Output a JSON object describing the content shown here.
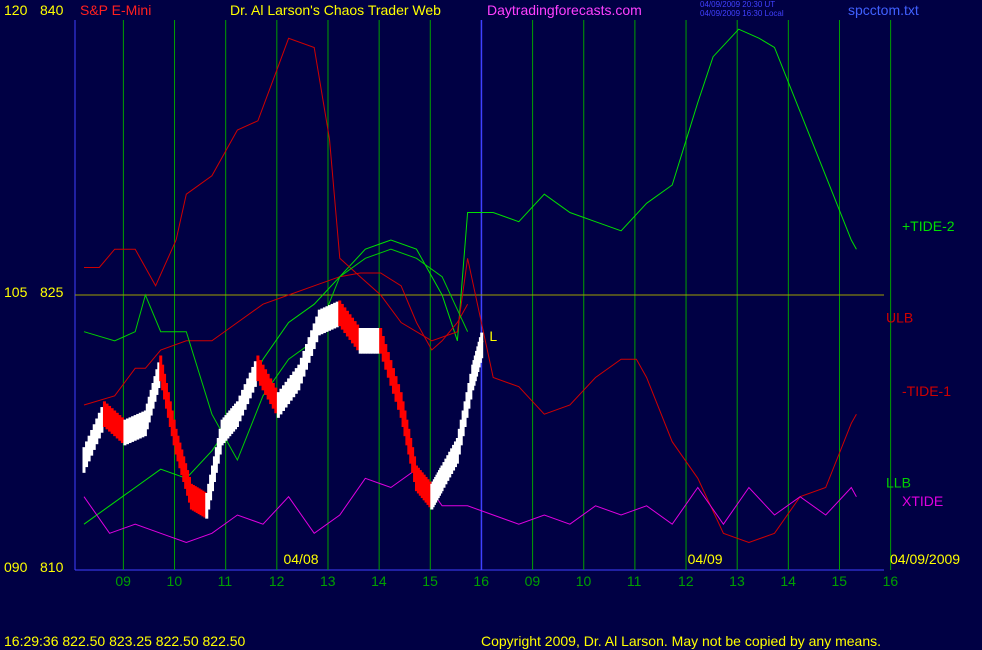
{
  "header": {
    "y_left_top_a": "120",
    "y_left_top_b": "840",
    "symbol": "S&P E-Mini",
    "title": "Dr. Al Larson's Chaos Trader Web",
    "site": "Daytradingforecasts.com",
    "utc_stamp": "04/09/2009 20:30 UT",
    "local_stamp": "04/09/2009 16:30 Local",
    "file": "spcctom.txt"
  },
  "footer": {
    "quote": "16:29:36  822.50  823.25  822.50  822.50",
    "copyright": "Copyright 2009, Dr. Al Larson. May not be copied by any means."
  },
  "labels": {
    "tide2": "+TIDE-2",
    "ulb": "ULB",
    "tide1": "-TIDE-1",
    "llb": "LLB",
    "xtide": "XTIDE",
    "date1": "04/08",
    "date2": "04/09",
    "date_end": "04/09/2009",
    "marker": "L"
  },
  "colors": {
    "background": "#000044",
    "grid": "#00a000",
    "hline": "#a0a000",
    "now_line": "#4040ff",
    "ulb": "#d00000",
    "tide2": "#00e000",
    "llb": "#00d000",
    "xtide": "#e000e0",
    "avg": "#2040ff",
    "yellow": "#ffff00",
    "price_up": "#ffffff",
    "price_down": "#ff0000"
  },
  "chart_data": {
    "type": "line",
    "title": "S&P E-Mini",
    "ylabel_left_osc": [
      "090",
      "105",
      "120"
    ],
    "ylabel_left_price": [
      "810",
      "825",
      "840"
    ],
    "ylim": [
      810,
      840
    ],
    "x_ticks": [
      "09",
      "10",
      "11",
      "12",
      "13",
      "14",
      "15",
      "16",
      "09",
      "10",
      "11",
      "12",
      "13",
      "14",
      "15",
      "16"
    ],
    "x_day_labels": [
      "04/08",
      "04/09"
    ],
    "last_date": "04/09/2009",
    "series": [
      {
        "name": "+TIDE-2",
        "x": [
          0,
          0.5,
          1,
          1.5,
          2,
          2.5,
          3,
          3.5,
          4,
          4.5,
          5,
          5.5,
          6,
          6.5,
          7,
          7.3,
          7.5,
          8,
          8.5,
          9,
          9.5,
          10,
          10.5,
          11,
          11.5,
          12,
          12.3,
          12.8,
          13.2,
          13.5,
          14,
          14.5,
          15,
          15.1
        ],
        "y": [
          812.5,
          813.5,
          814.5,
          815.5,
          815,
          816.5,
          818.5,
          821.5,
          823.5,
          824.5,
          826,
          827.5,
          828,
          827.5,
          825,
          822.5,
          829.5,
          829.5,
          829,
          830.5,
          829.5,
          829,
          828.5,
          830,
          831,
          835.5,
          838,
          839.5,
          839,
          838.5,
          835,
          831.5,
          828,
          827.5
        ]
      },
      {
        "name": "ULB",
        "x": [
          0,
          0.3,
          0.6,
          1,
          1.4,
          1.8,
          2,
          2.5,
          3,
          3.4,
          3.8,
          4,
          4.5,
          4.8,
          5,
          5.4,
          5.8,
          6.2,
          6.8,
          7.3,
          7.5,
          8,
          8.5,
          9,
          9.5,
          10,
          10.5,
          10.8,
          11,
          11.5,
          12,
          12.5,
          13,
          13.5,
          14,
          14.5,
          15,
          15.1
        ],
        "y": [
          826.5,
          826.5,
          827.5,
          827.5,
          825.5,
          828,
          830.5,
          831.5,
          834,
          834.5,
          837.5,
          839,
          838.5,
          833.5,
          827,
          826,
          825,
          823.5,
          822.5,
          823,
          827,
          820.5,
          820,
          818.5,
          819,
          820.5,
          821.5,
          821.5,
          820.5,
          817,
          815,
          812,
          811.5,
          812,
          814,
          814.5,
          818,
          818.5
        ]
      },
      {
        "name": "-TIDE-1",
        "x": [
          0,
          0.6,
          1,
          1.2,
          1.5,
          2,
          2.5,
          3,
          3.5,
          4,
          4.5,
          5,
          5.4,
          5.8,
          6.2,
          6.5,
          6.8,
          7,
          7.3,
          7.5
        ],
        "y": [
          819,
          819.5,
          821,
          821,
          822,
          822.5,
          822.5,
          823.5,
          824.5,
          825,
          825.5,
          826,
          826.2,
          826.2,
          825.5,
          823.5,
          822,
          822.5,
          823.5,
          824.5
        ]
      },
      {
        "name": "LLB",
        "x": [
          0,
          0.6,
          1,
          1.2,
          1.5,
          2,
          2.5,
          3,
          3.5,
          4,
          4.5,
          5,
          5.5,
          6,
          6.5,
          7,
          7.5
        ],
        "y": [
          823,
          822.5,
          823,
          825,
          823,
          823,
          818.5,
          816,
          819.5,
          821.5,
          822.5,
          826,
          827,
          827.5,
          827,
          826,
          823
        ]
      },
      {
        "name": "XTIDE",
        "x": [
          0,
          0.5,
          1,
          1.5,
          2,
          2.5,
          3,
          3.5,
          4,
          4.5,
          5,
          5.5,
          6,
          6.5,
          7,
          7.5,
          8,
          8.5,
          9,
          9.5,
          10,
          10.5,
          11,
          11.5,
          12,
          12.5,
          13,
          13.5,
          14,
          14.5,
          15,
          15.1
        ],
        "y": [
          814,
          812,
          812.5,
          812,
          811.5,
          812,
          813,
          812.5,
          814,
          812,
          813,
          815,
          814.5,
          815.5,
          813.5,
          813.5,
          813,
          812.5,
          813,
          812.5,
          813.5,
          813,
          813.5,
          812.5,
          814.5,
          812.5,
          814.5,
          813,
          814,
          813,
          814.5,
          814
        ]
      },
      {
        "name": "price",
        "x": [
          0,
          0.4,
          0.8,
          1.2,
          1.5,
          1.8,
          2.1,
          2.4,
          2.7,
          3,
          3.4,
          3.8,
          4.2,
          4.6,
          5,
          5.4,
          5.8,
          6.2,
          6.5,
          6.8,
          7,
          7.3,
          7.6,
          7.8
        ],
        "y": [
          816,
          818.5,
          817.5,
          818,
          821,
          817,
          814,
          813.5,
          817.5,
          818.5,
          821,
          819,
          820.5,
          823.5,
          824,
          822.5,
          822.5,
          819,
          815,
          814,
          815,
          816.5,
          820.5,
          822.5
        ]
      }
    ],
    "hline_value": 825,
    "marker_label": "L"
  }
}
